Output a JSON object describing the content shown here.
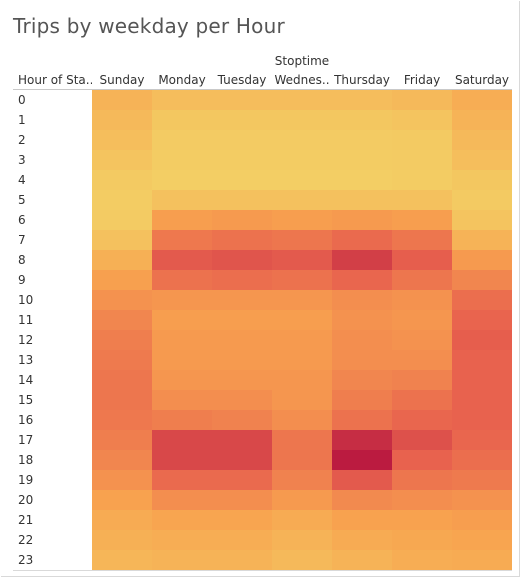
{
  "title": "Trips by weekday per Hour",
  "column_group_title": "Stoptime",
  "row_header_label": "Hour of Sta..",
  "columns": [
    "Sunday",
    "Monday",
    "Tuesday",
    "Wednes..",
    "Thursday",
    "Friday",
    "Saturday"
  ],
  "rows": [
    "0",
    "1",
    "2",
    "3",
    "4",
    "5",
    "6",
    "7",
    "8",
    "9",
    "10",
    "11",
    "12",
    "13",
    "14",
    "15",
    "16",
    "17",
    "18",
    "19",
    "20",
    "21",
    "22",
    "23"
  ],
  "chart_data": {
    "type": "heatmap",
    "title": "Trips by weekday per Hour",
    "xlabel": "Stoptime",
    "ylabel": "Hour of Sta..",
    "x": [
      "Sunday",
      "Monday",
      "Tuesday",
      "Wednes..",
      "Thursday",
      "Friday",
      "Saturday"
    ],
    "y": [
      "0",
      "1",
      "2",
      "3",
      "4",
      "5",
      "6",
      "7",
      "8",
      "9",
      "10",
      "11",
      "12",
      "13",
      "14",
      "15",
      "16",
      "17",
      "18",
      "19",
      "20",
      "21",
      "22",
      "23"
    ],
    "values": [
      [
        0.22,
        0.15,
        0.15,
        0.15,
        0.15,
        0.18,
        0.26
      ],
      [
        0.18,
        0.08,
        0.08,
        0.08,
        0.08,
        0.1,
        0.22
      ],
      [
        0.14,
        0.05,
        0.05,
        0.05,
        0.05,
        0.06,
        0.18
      ],
      [
        0.1,
        0.04,
        0.04,
        0.04,
        0.04,
        0.05,
        0.14
      ],
      [
        0.06,
        0.03,
        0.03,
        0.03,
        0.03,
        0.04,
        0.08
      ],
      [
        0.04,
        0.12,
        0.12,
        0.12,
        0.12,
        0.12,
        0.06
      ],
      [
        0.05,
        0.36,
        0.38,
        0.36,
        0.38,
        0.36,
        0.1
      ],
      [
        0.12,
        0.55,
        0.58,
        0.56,
        0.62,
        0.56,
        0.22
      ],
      [
        0.24,
        0.7,
        0.72,
        0.7,
        0.82,
        0.68,
        0.38
      ],
      [
        0.35,
        0.58,
        0.6,
        0.58,
        0.64,
        0.56,
        0.48
      ],
      [
        0.42,
        0.4,
        0.4,
        0.4,
        0.44,
        0.42,
        0.6
      ],
      [
        0.48,
        0.36,
        0.36,
        0.36,
        0.42,
        0.4,
        0.65
      ],
      [
        0.52,
        0.38,
        0.38,
        0.38,
        0.44,
        0.42,
        0.68
      ],
      [
        0.54,
        0.38,
        0.38,
        0.38,
        0.44,
        0.44,
        0.66
      ],
      [
        0.56,
        0.4,
        0.4,
        0.4,
        0.48,
        0.5,
        0.66
      ],
      [
        0.56,
        0.44,
        0.44,
        0.4,
        0.52,
        0.58,
        0.66
      ],
      [
        0.55,
        0.52,
        0.5,
        0.44,
        0.58,
        0.64,
        0.66
      ],
      [
        0.52,
        0.78,
        0.78,
        0.56,
        0.9,
        0.74,
        0.64
      ],
      [
        0.48,
        0.78,
        0.78,
        0.56,
        0.98,
        0.66,
        0.6
      ],
      [
        0.42,
        0.62,
        0.62,
        0.5,
        0.7,
        0.56,
        0.54
      ],
      [
        0.34,
        0.44,
        0.44,
        0.38,
        0.46,
        0.44,
        0.42
      ],
      [
        0.28,
        0.32,
        0.32,
        0.28,
        0.34,
        0.34,
        0.36
      ],
      [
        0.24,
        0.26,
        0.26,
        0.22,
        0.28,
        0.3,
        0.32
      ],
      [
        0.2,
        0.22,
        0.22,
        0.18,
        0.22,
        0.26,
        0.28
      ]
    ],
    "color_scale": [
      "#f2d266",
      "#f8a34f",
      "#e8614e",
      "#b8173f"
    ],
    "grid": false
  }
}
